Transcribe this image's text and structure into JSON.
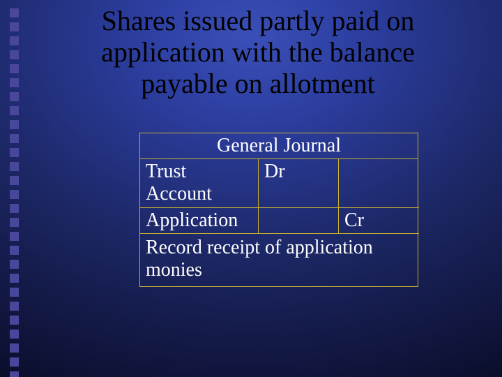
{
  "colors": {
    "border": "#c8b030",
    "text": "#ffffff",
    "title": "#000000",
    "bullet": "#49479c"
  },
  "title": "Shares issued partly paid on application with the balance payable on allotment",
  "journal": {
    "heading": "General Journal",
    "rows": [
      {
        "account": "Trust Account",
        "dr": "Dr",
        "cr": ""
      },
      {
        "account": "Application",
        "dr": "",
        "cr": "Cr"
      }
    ],
    "footer": "Record receipt of application monies"
  },
  "bullet_count": 27
}
